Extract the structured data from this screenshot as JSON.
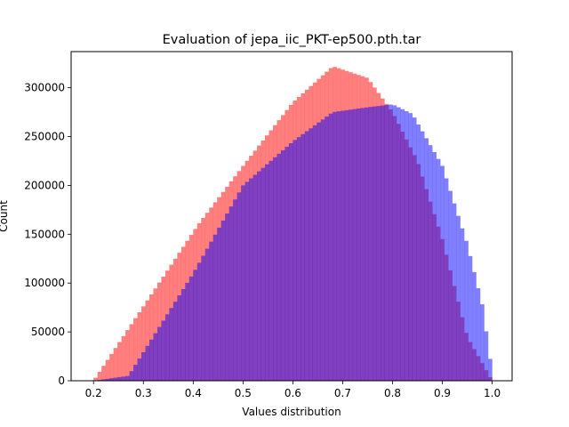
{
  "chart_data": {
    "type": "histogram",
    "title": "Evaluation of jepa_iic_PKT-ep500.pth.tar",
    "xlabel": "Values distribution",
    "ylabel": "Count",
    "xlim": [
      0.155,
      1.04
    ],
    "ylim": [
      0,
      337000
    ],
    "xticks": [
      0.2,
      0.3,
      0.4,
      0.5,
      0.6,
      0.7,
      0.8,
      0.9,
      1.0
    ],
    "xtick_labels": [
      "0.2",
      "0.3",
      "0.4",
      "0.5",
      "0.6",
      "0.7",
      "0.8",
      "0.9",
      "1.0"
    ],
    "yticks": [
      0,
      50000,
      100000,
      150000,
      200000,
      250000,
      300000
    ],
    "ytick_labels": [
      "0",
      "50000",
      "100000",
      "150000",
      "200000",
      "250000",
      "300000"
    ],
    "grid": false,
    "legend": "none",
    "overlap_color": "#c03c7c",
    "series": [
      {
        "color": "#ff0000",
        "alpha": 0.5,
        "x": [
          0.2,
          0.41,
          0.5,
          0.6,
          0.68,
          0.75,
          0.8,
          0.85,
          0.9,
          0.95,
          1.0
        ],
        "y": [
          0,
          160000,
          220000,
          285000,
          322000,
          310000,
          275000,
          225000,
          145000,
          45000,
          0
        ]
      },
      {
        "color": "#0000ff",
        "alpha": 0.5,
        "x": [
          0.2,
          0.27,
          0.4,
          0.5,
          0.6,
          0.68,
          0.75,
          0.8,
          0.84,
          0.9,
          0.95,
          0.985,
          0.995,
          1.0
        ],
        "y": [
          0,
          5000,
          110000,
          200000,
          245000,
          275000,
          280000,
          283000,
          273000,
          220000,
          140000,
          68000,
          10000,
          72000
        ]
      }
    ]
  }
}
